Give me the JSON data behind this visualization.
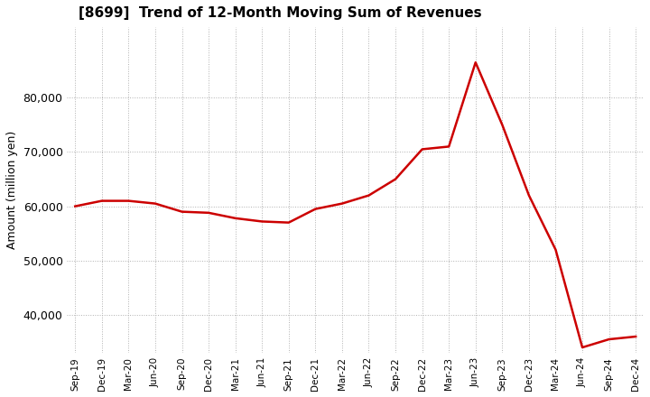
{
  "title": "[8699]  Trend of 12-Month Moving Sum of Revenues",
  "ylabel": "Amount (million yen)",
  "line_color": "#cc0000",
  "background_color": "#ffffff",
  "plot_bg_color": "#ffffff",
  "grid_color": "#b0b0b0",
  "ylim": [
    33000,
    93000
  ],
  "yticks": [
    40000,
    50000,
    60000,
    70000,
    80000
  ],
  "x_labels": [
    "Sep-19",
    "Dec-19",
    "Mar-20",
    "Jun-20",
    "Sep-20",
    "Dec-20",
    "Mar-21",
    "Jun-21",
    "Sep-21",
    "Dec-21",
    "Mar-22",
    "Jun-22",
    "Sep-22",
    "Dec-22",
    "Mar-23",
    "Jun-23",
    "Sep-23",
    "Dec-23",
    "Mar-24",
    "Jun-24",
    "Sep-24",
    "Dec-24"
  ],
  "values": [
    60000,
    61000,
    61000,
    60500,
    59000,
    58800,
    57800,
    57200,
    57000,
    59500,
    60500,
    62000,
    65000,
    70500,
    71000,
    86500,
    75000,
    62000,
    52000,
    34000,
    35500,
    36000
  ]
}
